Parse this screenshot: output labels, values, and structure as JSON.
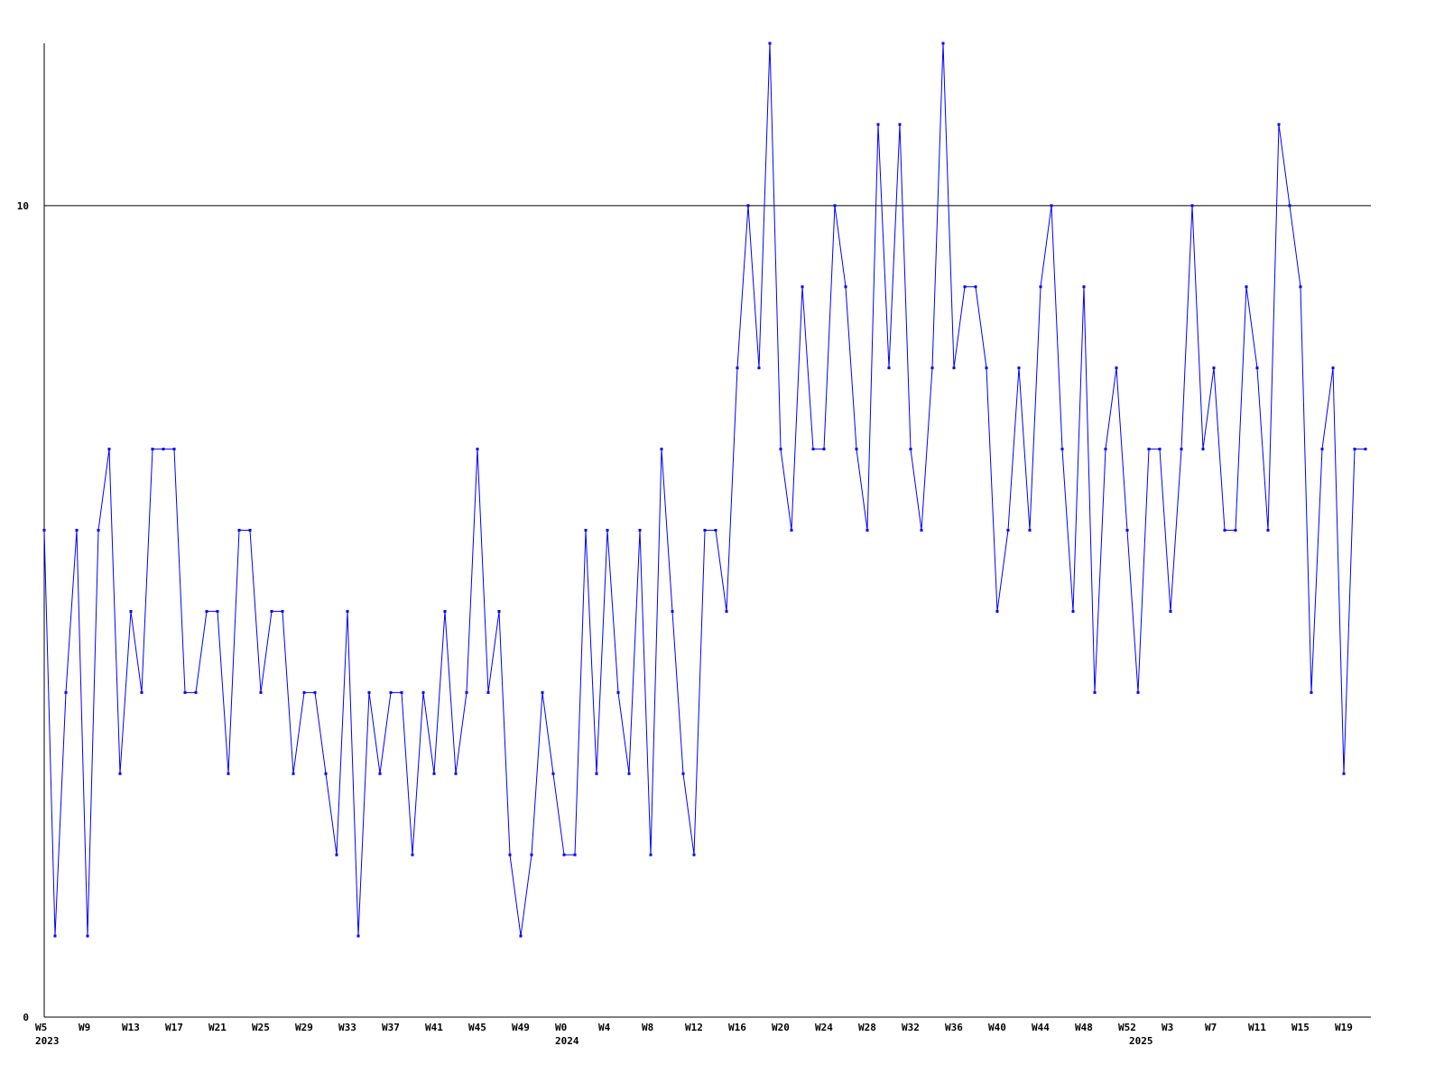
{
  "chart_data": {
    "type": "line",
    "categories": [
      "W5",
      null,
      null,
      null,
      "W9",
      null,
      null,
      null,
      "W13",
      null,
      null,
      null,
      "W17",
      null,
      null,
      null,
      "W21",
      null,
      null,
      null,
      "W25",
      null,
      null,
      null,
      "W29",
      null,
      null,
      null,
      "W33",
      null,
      null,
      null,
      "W37",
      null,
      null,
      null,
      "W41",
      null,
      null,
      null,
      "W45",
      null,
      null,
      null,
      "W49",
      null,
      null,
      null,
      "W0",
      null,
      null,
      null,
      "W4",
      null,
      null,
      null,
      "W8",
      null,
      null,
      null,
      "W12",
      null,
      null,
      null,
      "W16",
      null,
      null,
      null,
      "W20",
      null,
      null,
      null,
      "W24",
      null,
      null,
      null,
      "W28",
      null,
      null,
      null,
      "W32",
      null,
      null,
      null,
      "W36",
      null,
      null,
      null,
      "W40",
      null,
      null,
      null,
      "W44",
      null,
      null,
      null,
      "W48",
      null,
      null,
      null,
      "W52",
      null,
      null,
      null,
      "W3",
      null,
      null,
      null,
      "W7",
      null,
      null,
      null,
      "W11",
      null,
      null,
      null,
      "W15",
      null,
      null,
      null,
      "W19",
      null,
      null
    ],
    "year_labels": [
      "2023",
      "2024",
      "2025"
    ],
    "series": [
      {
        "color": "#0000ff",
        "values": [
          6,
          1,
          4,
          6,
          1,
          6,
          7,
          3,
          5,
          4,
          7,
          7,
          7,
          4,
          4,
          5,
          5,
          3,
          6,
          6,
          4,
          5,
          5,
          3,
          4,
          4,
          3,
          2,
          5,
          1,
          4,
          3,
          4,
          4,
          2,
          4,
          3,
          5,
          3,
          4,
          7,
          4,
          5,
          2,
          1,
          2,
          4,
          3,
          2,
          2,
          6,
          3,
          6,
          4,
          3,
          6,
          2,
          7,
          5,
          3,
          2,
          6,
          6,
          5,
          8,
          10,
          8,
          12,
          7,
          6,
          9,
          7,
          7,
          10,
          9,
          7,
          6,
          11,
          8,
          11,
          7,
          6,
          8,
          12,
          8,
          9,
          9,
          8,
          5,
          6,
          8,
          6,
          9,
          10,
          7,
          5,
          9,
          4,
          7,
          8,
          6,
          4,
          7,
          7,
          5,
          7,
          10,
          7,
          8,
          6,
          6,
          9,
          8,
          6,
          11,
          10,
          9,
          4,
          7,
          8,
          3,
          7,
          7
        ]
      }
    ],
    "ylim": [
      0,
      12
    ],
    "yticks": [
      0,
      10
    ],
    "grid": true
  }
}
